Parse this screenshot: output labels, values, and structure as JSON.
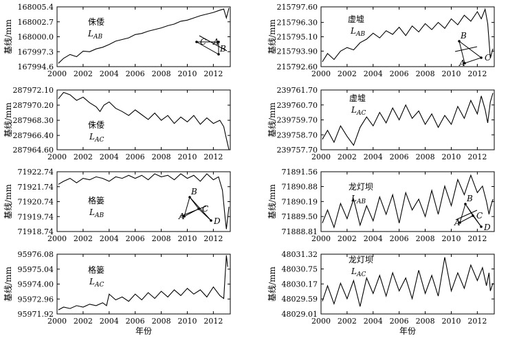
{
  "x_axis_label": "年份",
  "chart_data": [
    {
      "type": "line",
      "station": "侏倭",
      "baseline": "L",
      "baseline_sub": "AB",
      "ylabel": "基线/mm",
      "x_ticks": [
        "2000",
        "2002",
        "2004",
        "2006",
        "2008",
        "2010",
        "2012"
      ],
      "xlim": [
        2000,
        2013.3
      ],
      "y_ticks": [
        "168005.4",
        "168002.7",
        "168000.0",
        "167997.3",
        "167994.6"
      ],
      "ylim": [
        167994.6,
        168005.4
      ],
      "inset": {
        "type": "triangle",
        "labels": [
          "A",
          "B",
          "C"
        ],
        "highlight": "AB"
      },
      "series": [
        {
          "name": "侏倭 LAB",
          "x": [
            2000.1,
            2000.5,
            2001,
            2001.5,
            2002,
            2002.5,
            2003,
            2003.5,
            2004,
            2004.5,
            2005,
            2005.5,
            2006,
            2006.5,
            2007,
            2007.5,
            2008,
            2008.5,
            2009,
            2009.5,
            2010,
            2010.5,
            2011,
            2011.5,
            2012,
            2012.5,
            2012.8,
            2013.0,
            2013.2
          ],
          "y": [
            167995.2,
            167996.1,
            167996.8,
            167996.4,
            167997.4,
            167997.3,
            167997.8,
            167998.1,
            167998.6,
            167999.2,
            167999.5,
            167999.8,
            168000.4,
            168000.6,
            168001.0,
            168001.3,
            168001.6,
            168002.0,
            168002.3,
            168002.8,
            168003.0,
            168003.4,
            168003.8,
            168004.1,
            168004.4,
            168004.8,
            168005.0,
            168003.4,
            168005.2
          ]
        }
      ]
    },
    {
      "type": "line",
      "station": "虚墟",
      "baseline": "L",
      "baseline_sub": "AB",
      "ylabel": "基线/mm",
      "x_ticks": [
        "2000",
        "2002",
        "2004",
        "2006",
        "2008",
        "2010",
        "2012"
      ],
      "xlim": [
        2000,
        2013.3
      ],
      "y_ticks": [
        "215797.60",
        "215796.30",
        "215795.10",
        "215793.90",
        "215792.60"
      ],
      "ylim": [
        215792.6,
        215797.6
      ],
      "inset": {
        "type": "triangle",
        "labels": [
          "A",
          "B",
          "C"
        ],
        "highlight": "AB"
      },
      "series": [
        {
          "name": "虚墟 LAB",
          "x": [
            2000.1,
            2000.5,
            2001,
            2001.5,
            2002,
            2002.5,
            2003,
            2003.5,
            2004,
            2004.5,
            2005,
            2005.5,
            2006,
            2006.5,
            2007,
            2007.5,
            2008,
            2008.5,
            2009,
            2009.5,
            2010,
            2010.5,
            2011,
            2011.5,
            2012,
            2012.3,
            2012.6,
            2012.8,
            2013.0,
            2013.2
          ],
          "y": [
            215793.0,
            215793.7,
            215793.2,
            215793.9,
            215794.2,
            215794.0,
            215794.6,
            215794.9,
            215795.4,
            215795.0,
            215795.6,
            215795.3,
            215795.9,
            215795.2,
            215796.0,
            215795.5,
            215796.2,
            215795.7,
            215796.3,
            215795.8,
            215796.6,
            215796.1,
            215796.9,
            215796.4,
            215797.2,
            215796.6,
            215797.4,
            215796.2,
            215793.3,
            215794.1
          ]
        }
      ]
    },
    {
      "type": "line",
      "station": "侏倭",
      "baseline": "L",
      "baseline_sub": "AC",
      "ylabel": "基线/mm",
      "x_ticks": [
        "2000",
        "2002",
        "2004",
        "2006",
        "2008",
        "2010",
        "2012"
      ],
      "xlim": [
        2000,
        2013.3
      ],
      "y_ticks": [
        "287972.10",
        "287970.20",
        "287968.30",
        "287966.40",
        "287964.60"
      ],
      "ylim": [
        287964.6,
        287972.1
      ],
      "inset": null,
      "series": [
        {
          "name": "侏倭 LAC",
          "x": [
            2000.1,
            2000.5,
            2001,
            2001.5,
            2002,
            2002.5,
            2003,
            2003.3,
            2003.6,
            2004,
            2004.5,
            2005,
            2005.5,
            2006,
            2006.5,
            2007,
            2007.5,
            2008,
            2008.5,
            2009,
            2009.5,
            2010,
            2010.5,
            2011,
            2011.5,
            2012,
            2012.5,
            2012.8,
            2013.0,
            2013.2
          ],
          "y": [
            287971.0,
            287971.8,
            287971.5,
            287970.8,
            287971.2,
            287970.5,
            287970.0,
            287969.4,
            287970.2,
            287970.6,
            287969.8,
            287969.4,
            287968.9,
            287969.6,
            287969.0,
            287968.4,
            287969.2,
            287968.3,
            287968.9,
            287967.9,
            287968.7,
            287968.1,
            287968.9,
            287967.8,
            287968.6,
            287967.9,
            287968.3,
            287967.5,
            287966.0,
            287964.6
          ]
        }
      ]
    },
    {
      "type": "line",
      "station": "虚墟",
      "baseline": "L",
      "baseline_sub": "AC",
      "ylabel": "基线/mm",
      "x_ticks": [
        "2000",
        "2002",
        "2004",
        "2006",
        "2008",
        "2010",
        "2012"
      ],
      "xlim": [
        2000,
        2013.3
      ],
      "y_ticks": [
        "239761.70",
        "239760.70",
        "239759.70",
        "239758.70",
        "239757.70"
      ],
      "ylim": [
        239757.7,
        239761.7
      ],
      "inset": null,
      "series": [
        {
          "name": "虚墟 LAC",
          "x": [
            2000.1,
            2000.5,
            2001,
            2001.5,
            2002,
            2002.5,
            2003,
            2003.5,
            2004,
            2004.5,
            2005,
            2005.5,
            2006,
            2006.5,
            2007,
            2007.5,
            2008,
            2008.5,
            2009,
            2009.5,
            2010,
            2010.5,
            2011,
            2011.5,
            2012,
            2012.3,
            2012.6,
            2012.8,
            2013.0,
            2013.2
          ],
          "y": [
            239758.4,
            239759.0,
            239758.2,
            239759.3,
            239758.6,
            239758.0,
            239759.2,
            239759.9,
            239759.3,
            239760.2,
            239759.5,
            239760.5,
            239759.7,
            239760.7,
            239759.8,
            239760.3,
            239759.4,
            239760.1,
            239759.2,
            239760.0,
            239759.4,
            239760.6,
            239759.8,
            239761.0,
            239760.1,
            239761.3,
            239760.4,
            239759.5,
            239760.9,
            239761.5
          ]
        }
      ]
    },
    {
      "type": "line",
      "station": "格篓",
      "baseline": "L",
      "baseline_sub": "AB",
      "ylabel": "基线/mm",
      "x_ticks": [
        "2000",
        "2002",
        "2004",
        "2006",
        "2008",
        "2010",
        "2012"
      ],
      "xlim": [
        2000,
        2013.3
      ],
      "y_ticks": [
        "71922.74",
        "71921.74",
        "71920.74",
        "71919.74",
        "71918.74"
      ],
      "ylim": [
        71918.74,
        71922.74
      ],
      "inset": {
        "type": "triangle",
        "labels": [
          "A",
          "B",
          "C",
          "D"
        ],
        "highlight": "AB"
      },
      "series": [
        {
          "name": "格篓 LAB",
          "x": [
            2000.1,
            2000.5,
            2001,
            2001.5,
            2002,
            2002.5,
            2003,
            2003.5,
            2004,
            2004.5,
            2005,
            2005.5,
            2006,
            2006.5,
            2007,
            2007.5,
            2008,
            2008.5,
            2009,
            2009.5,
            2010,
            2010.5,
            2011,
            2011.5,
            2012,
            2012.4,
            2012.7,
            2012.9,
            2013.0,
            2013.2
          ],
          "y": [
            71921.9,
            71922.1,
            71922.3,
            71922.0,
            71922.3,
            71922.2,
            71922.4,
            71922.3,
            71922.1,
            71922.4,
            71922.3,
            71922.5,
            71922.3,
            71922.5,
            71922.2,
            71922.6,
            71922.4,
            71922.5,
            71922.2,
            71922.6,
            71922.3,
            71922.5,
            71922.1,
            71922.6,
            71922.2,
            71922.4,
            71921.5,
            71919.7,
            71918.9,
            71920.4
          ]
        }
      ]
    },
    {
      "type": "line",
      "station": "龙灯坝",
      "baseline": "L",
      "baseline_sub": "AB",
      "ylabel": "基线/mm",
      "x_ticks": [
        "2000",
        "2002",
        "2004",
        "2006",
        "2008",
        "2010",
        "2012"
      ],
      "xlim": [
        2000,
        2013.3
      ],
      "y_ticks": [
        "71891.56",
        "71890.88",
        "71890.19",
        "71889.50",
        "71888.81"
      ],
      "ylim": [
        71888.81,
        71891.56
      ],
      "inset": {
        "type": "triangle",
        "labels": [
          "A",
          "B",
          "C",
          "D"
        ],
        "highlight": "AB"
      },
      "series": [
        {
          "name": "龙灯坝 LAB",
          "x": [
            2000.1,
            2000.5,
            2001,
            2001.5,
            2002,
            2002.5,
            2003,
            2003.5,
            2004,
            2004.5,
            2005,
            2005.5,
            2006,
            2006.5,
            2007,
            2007.5,
            2008,
            2008.5,
            2009,
            2009.5,
            2010,
            2010.5,
            2011,
            2011.5,
            2012,
            2012.4,
            2012.7,
            2012.9,
            2013.0,
            2013.2
          ],
          "y": [
            71889.2,
            71889.8,
            71889.0,
            71890.1,
            71889.4,
            71890.3,
            71889.1,
            71890.0,
            71889.3,
            71890.4,
            71889.6,
            71890.5,
            71889.2,
            71890.6,
            71889.8,
            71890.3,
            71889.5,
            71890.7,
            71889.6,
            71890.9,
            71890.0,
            71891.2,
            71890.5,
            71891.4,
            71890.6,
            71890.9,
            71890.2,
            71889.6,
            71889.9,
            71890.3
          ]
        }
      ]
    },
    {
      "type": "line",
      "station": "格篓",
      "baseline": "L",
      "baseline_sub": "AC",
      "ylabel": "基线/mm",
      "x_ticks": [
        "2000",
        "2002",
        "2004",
        "2006",
        "2008",
        "2010",
        "2012"
      ],
      "xlim": [
        2000,
        2013.3
      ],
      "y_ticks": [
        "95976.08",
        "95975.04",
        "95974.00",
        "95972.96",
        "95971.92"
      ],
      "ylim": [
        95971.92,
        95976.08
      ],
      "inset": null,
      "series": [
        {
          "name": "格篓 LAC",
          "x": [
            2000.1,
            2000.5,
            2001,
            2001.5,
            2002,
            2002.5,
            2003,
            2003.5,
            2003.8,
            2004,
            2004.5,
            2005,
            2005.5,
            2006,
            2006.5,
            2007,
            2007.5,
            2008,
            2008.5,
            2009,
            2009.5,
            2010,
            2010.5,
            2011,
            2011.5,
            2012,
            2012.5,
            2012.8,
            2013.0,
            2013.1
          ],
          "y": [
            95972.2,
            95972.4,
            95972.3,
            95972.5,
            95972.4,
            95972.6,
            95972.5,
            95972.7,
            95972.5,
            95973.3,
            95972.9,
            95973.1,
            95972.8,
            95973.3,
            95972.9,
            95973.4,
            95973.0,
            95973.5,
            95973.1,
            95973.6,
            95973.2,
            95973.7,
            95973.3,
            95973.6,
            95973.1,
            95973.8,
            95973.2,
            95973.0,
            95976.0,
            95975.2
          ]
        }
      ]
    },
    {
      "type": "line",
      "station": "龙灯坝",
      "baseline": "L",
      "baseline_sub": "AC",
      "ylabel": "基线/mm",
      "x_ticks": [
        "2000",
        "2002",
        "2004",
        "2006",
        "2008",
        "2010",
        "2012"
      ],
      "xlim": [
        2000,
        2013.3
      ],
      "y_ticks": [
        "48031.32",
        "48030.75",
        "48030.17",
        "48029.59",
        "48029.01"
      ],
      "ylim": [
        48029.01,
        48031.32
      ],
      "inset": null,
      "series": [
        {
          "name": "龙灯坝 LAC",
          "x": [
            2000.1,
            2000.5,
            2001,
            2001.5,
            2002,
            2002.5,
            2003,
            2003.5,
            2004,
            2004.5,
            2005,
            2005.5,
            2006,
            2006.5,
            2007,
            2007.5,
            2008,
            2008.5,
            2009,
            2009.5,
            2010,
            2010.5,
            2011,
            2011.5,
            2012,
            2012.4,
            2012.7,
            2012.9,
            2013.0,
            2013.2
          ],
          "y": [
            48029.5,
            48030.1,
            48029.4,
            48030.2,
            48029.6,
            48030.3,
            48029.3,
            48030.4,
            48029.8,
            48030.5,
            48029.7,
            48030.6,
            48029.9,
            48030.4,
            48029.6,
            48030.7,
            48029.8,
            48030.5,
            48029.7,
            48031.2,
            48029.9,
            48030.6,
            48030.0,
            48030.9,
            48030.3,
            48030.8,
            48030.1,
            48030.6,
            48029.9,
            48030.2
          ]
        }
      ]
    }
  ]
}
